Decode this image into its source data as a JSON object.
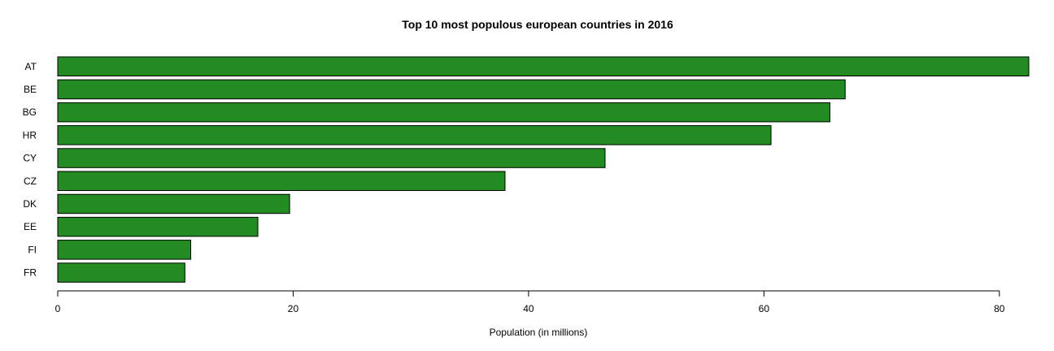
{
  "chart_data": {
    "type": "bar",
    "orientation": "horizontal",
    "title": "Top 10 most populous european countries in 2016",
    "xlabel": "Population (in millions)",
    "ylabel": "",
    "categories": [
      "AT",
      "BE",
      "BG",
      "HR",
      "CY",
      "CZ",
      "DK",
      "EE",
      "FI",
      "FR"
    ],
    "values": [
      82.5,
      66.9,
      65.6,
      60.6,
      46.5,
      38.0,
      19.7,
      17.0,
      11.3,
      10.8
    ],
    "xlim": [
      0,
      82.5
    ],
    "xticks": [
      0,
      20,
      40,
      60,
      80
    ],
    "bar_color": "#228b22",
    "bar_edge_color": "#000000",
    "grid": false
  }
}
